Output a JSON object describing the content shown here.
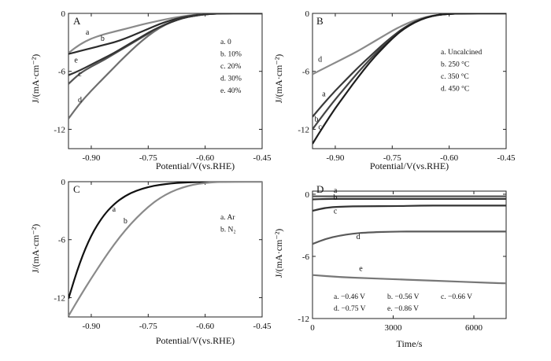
{
  "chart_data": [
    {
      "panel": "A",
      "type": "line",
      "xlabel": "Potential/V(vs.RHE)",
      "ylabel": "J/(mA·cm⁻²)",
      "xlim": [
        -0.96,
        -0.45
      ],
      "ylim": [
        -14,
        0
      ],
      "xticks": [
        -0.9,
        -0.75,
        -0.6,
        -0.45
      ],
      "xticklabels": [
        "-0.90",
        "-0.75",
        "-0.60",
        "-0.45"
      ],
      "yticks": [
        0,
        -6,
        -12
      ],
      "yticklabels": [
        "0",
        "-6",
        "-12"
      ],
      "legend": [
        "a. 0",
        "b. 10%",
        "c. 20%",
        "d. 30%",
        "e. 40%"
      ],
      "series": [
        {
          "label": "a",
          "color": "#8a8a8a",
          "x": [
            -0.96,
            -0.93,
            -0.9,
            -0.87,
            -0.84,
            -0.81,
            -0.78,
            -0.75,
            -0.72,
            -0.69,
            -0.66,
            -0.63,
            -0.6,
            -0.57,
            -0.54,
            -0.51,
            -0.48,
            -0.45
          ],
          "y": [
            -4.1,
            -3.2,
            -2.6,
            -2.2,
            -1.9,
            -1.6,
            -1.3,
            -1.0,
            -0.75,
            -0.5,
            -0.3,
            -0.15,
            -0.06,
            -0.02,
            0,
            0,
            0,
            0
          ]
        },
        {
          "label": "b",
          "color": "#2b2b2b",
          "x": [
            -0.96,
            -0.93,
            -0.9,
            -0.87,
            -0.84,
            -0.81,
            -0.78,
            -0.75,
            -0.72,
            -0.69,
            -0.66,
            -0.63,
            -0.6,
            -0.57,
            -0.54,
            -0.51,
            -0.48,
            -0.45
          ],
          "y": [
            -4.2,
            -3.9,
            -3.6,
            -3.3,
            -3.0,
            -2.6,
            -2.1,
            -1.6,
            -1.1,
            -0.7,
            -0.4,
            -0.2,
            -0.08,
            -0.02,
            0,
            0,
            0,
            0
          ]
        },
        {
          "label": "c",
          "color": "#555555",
          "x": [
            -0.96,
            -0.93,
            -0.9,
            -0.87,
            -0.84,
            -0.81,
            -0.78,
            -0.75,
            -0.72,
            -0.69,
            -0.66,
            -0.63,
            -0.6,
            -0.57,
            -0.54,
            -0.51,
            -0.48,
            -0.45
          ],
          "y": [
            -7.3,
            -6.2,
            -5.5,
            -4.9,
            -4.2,
            -3.5,
            -2.8,
            -2.1,
            -1.4,
            -0.9,
            -0.5,
            -0.25,
            -0.1,
            -0.03,
            0,
            0,
            0,
            0
          ]
        },
        {
          "label": "d",
          "color": "#6e6e6e",
          "x": [
            -0.96,
            -0.93,
            -0.9,
            -0.87,
            -0.84,
            -0.81,
            -0.78,
            -0.75,
            -0.72,
            -0.69,
            -0.66,
            -0.63,
            -0.6,
            -0.57,
            -0.54,
            -0.51,
            -0.48,
            -0.45
          ],
          "y": [
            -10.9,
            -9.3,
            -8.0,
            -6.8,
            -5.6,
            -4.4,
            -3.3,
            -2.3,
            -1.5,
            -0.9,
            -0.5,
            -0.25,
            -0.1,
            -0.03,
            0,
            0,
            0,
            0
          ]
        },
        {
          "label": "e",
          "color": "#333333",
          "x": [
            -0.96,
            -0.93,
            -0.9,
            -0.87,
            -0.84,
            -0.81,
            -0.78,
            -0.75,
            -0.72,
            -0.69,
            -0.66,
            -0.63,
            -0.6,
            -0.57,
            -0.54,
            -0.51,
            -0.48,
            -0.45
          ],
          "y": [
            -6.4,
            -5.9,
            -5.3,
            -4.7,
            -4.1,
            -3.4,
            -2.7,
            -2.0,
            -1.4,
            -0.9,
            -0.5,
            -0.25,
            -0.1,
            -0.03,
            0,
            0,
            0,
            0
          ]
        }
      ],
      "curve_labels": [
        {
          "text": "a",
          "x": -0.91,
          "y": -2.2
        },
        {
          "text": "b",
          "x": -0.87,
          "y": -2.85
        },
        {
          "text": "e",
          "x": -0.94,
          "y": -5.1
        },
        {
          "text": "c",
          "x": -0.93,
          "y": -6.5
        },
        {
          "text": "d",
          "x": -0.93,
          "y": -9.2
        }
      ]
    },
    {
      "panel": "B",
      "type": "line",
      "xlabel": "Potential/V(vs.RHE)",
      "ylabel": "J/(mA·cm⁻²)",
      "xlim": [
        -0.96,
        -0.45
      ],
      "ylim": [
        -14,
        0
      ],
      "xticks": [
        -0.9,
        -0.75,
        -0.6,
        -0.45
      ],
      "xticklabels": [
        "-0.90",
        "-0.75",
        "-0.60",
        "-0.45"
      ],
      "yticks": [
        0,
        -6,
        -12
      ],
      "yticklabels": [
        "0",
        "-6",
        "-12"
      ],
      "legend": [
        "a.  Uncalcined",
        "b.  250 °C",
        "c.  350 °C",
        "d.  450 °C"
      ],
      "series": [
        {
          "label": "d",
          "color": "#8a8a8a",
          "x": [
            -0.96,
            -0.93,
            -0.9,
            -0.87,
            -0.84,
            -0.81,
            -0.78,
            -0.75,
            -0.72,
            -0.69,
            -0.66,
            -0.63,
            -0.6,
            -0.57,
            -0.54,
            -0.51,
            -0.48,
            -0.45
          ],
          "y": [
            -6.3,
            -5.7,
            -5.1,
            -4.5,
            -3.9,
            -3.2,
            -2.5,
            -1.8,
            -1.2,
            -0.7,
            -0.35,
            -0.15,
            -0.05,
            -0.01,
            0,
            0,
            0,
            0
          ]
        },
        {
          "label": "a",
          "color": "#3a3a3a",
          "x": [
            -0.96,
            -0.93,
            -0.9,
            -0.87,
            -0.84,
            -0.81,
            -0.78,
            -0.75,
            -0.72,
            -0.69,
            -0.66,
            -0.63,
            -0.6,
            -0.57,
            -0.54,
            -0.51,
            -0.48,
            -0.45
          ],
          "y": [
            -10.7,
            -9.3,
            -8.0,
            -6.8,
            -5.6,
            -4.5,
            -3.4,
            -2.4,
            -1.5,
            -0.85,
            -0.4,
            -0.15,
            -0.05,
            -0.01,
            0,
            0,
            0,
            0
          ]
        },
        {
          "label": "b",
          "color": "#444444",
          "x": [
            -0.96,
            -0.93,
            -0.9,
            -0.87,
            -0.84,
            -0.81,
            -0.78,
            -0.75,
            -0.72,
            -0.69,
            -0.66,
            -0.63,
            -0.6,
            -0.57,
            -0.54,
            -0.51,
            -0.48,
            -0.45
          ],
          "y": [
            -12.0,
            -10.4,
            -8.9,
            -7.5,
            -6.1,
            -4.8,
            -3.6,
            -2.5,
            -1.6,
            -0.9,
            -0.42,
            -0.16,
            -0.05,
            -0.01,
            0,
            0,
            0,
            0
          ]
        },
        {
          "label": "c",
          "color": "#1e1e1e",
          "x": [
            -0.96,
            -0.93,
            -0.9,
            -0.87,
            -0.84,
            -0.81,
            -0.78,
            -0.75,
            -0.72,
            -0.69,
            -0.66,
            -0.63,
            -0.6,
            -0.57,
            -0.54,
            -0.51,
            -0.48,
            -0.45
          ],
          "y": [
            -13.5,
            -11.6,
            -9.8,
            -8.2,
            -6.6,
            -5.1,
            -3.8,
            -2.6,
            -1.6,
            -0.9,
            -0.42,
            -0.16,
            -0.05,
            -0.01,
            0,
            0,
            0,
            0
          ]
        }
      ],
      "curve_labels": [
        {
          "text": "d",
          "x": -0.94,
          "y": -5.0
        },
        {
          "text": "a",
          "x": -0.93,
          "y": -8.6
        },
        {
          "text": "b",
          "x": -0.95,
          "y": -11.2
        },
        {
          "text": "c",
          "x": -0.94,
          "y": -12.0
        }
      ]
    },
    {
      "panel": "C",
      "type": "line",
      "xlabel": "Potential/V(vs.RHE)",
      "ylabel": "J/(mA·cm⁻²)",
      "xlim": [
        -0.96,
        -0.45
      ],
      "ylim": [
        -14,
        0
      ],
      "xticks": [
        -0.9,
        -0.75,
        -0.6,
        -0.45
      ],
      "xticklabels": [
        "-0.90",
        "-0.75",
        "-0.60",
        "-0.45"
      ],
      "yticks": [
        0,
        -6,
        -12
      ],
      "yticklabels": [
        "0",
        "-6",
        "-12"
      ],
      "legend": [
        "a.  Ar",
        "b.  N₂"
      ],
      "series": [
        {
          "label": "a",
          "color": "#111111",
          "x": [
            -0.96,
            -0.93,
            -0.9,
            -0.87,
            -0.84,
            -0.81,
            -0.78,
            -0.75,
            -0.72,
            -0.69,
            -0.66,
            -0.63,
            -0.6,
            -0.57,
            -0.54,
            -0.51,
            -0.48,
            -0.45
          ],
          "y": [
            -12.1,
            -8.3,
            -5.5,
            -3.6,
            -2.3,
            -1.45,
            -0.9,
            -0.55,
            -0.32,
            -0.18,
            -0.1,
            -0.05,
            -0.02,
            -0.01,
            0,
            0,
            0,
            0
          ]
        },
        {
          "label": "b",
          "color": "#8a8a8a",
          "x": [
            -0.96,
            -0.93,
            -0.9,
            -0.87,
            -0.84,
            -0.81,
            -0.78,
            -0.75,
            -0.72,
            -0.69,
            -0.66,
            -0.63,
            -0.6,
            -0.57,
            -0.54,
            -0.51,
            -0.48,
            -0.45
          ],
          "y": [
            -13.9,
            -11.9,
            -10.0,
            -8.2,
            -6.5,
            -5.0,
            -3.7,
            -2.6,
            -1.7,
            -1.05,
            -0.6,
            -0.3,
            -0.12,
            -0.04,
            -0.01,
            0,
            0,
            0
          ]
        }
      ],
      "curve_labels": [
        {
          "text": "a",
          "x": -0.84,
          "y": -3.1
        },
        {
          "text": "b",
          "x": -0.81,
          "y": -4.3
        }
      ]
    },
    {
      "panel": "D",
      "type": "line",
      "xlabel": "Time/s",
      "ylabel": "J/(mA·cm⁻²)",
      "xlim": [
        0,
        7200
      ],
      "ylim": [
        -12,
        0.3
      ],
      "xticks": [
        0,
        3000,
        6000
      ],
      "xticklabels": [
        "0",
        "3000",
        "6000"
      ],
      "yticks": [
        0,
        -6,
        -12
      ],
      "yticklabels": [
        "0",
        "-6",
        "-12"
      ],
      "legend": [
        "a. −0.46 V",
        "b. −0.56 V",
        "c. −0.66 V",
        "d. −0.75 V",
        "e. −0.86 V"
      ],
      "series": [
        {
          "label": "a",
          "color": "#555555",
          "x": [
            0,
            500,
            1000,
            2000,
            3000,
            4000,
            5000,
            6000,
            7200
          ],
          "y": [
            -0.2,
            -0.2,
            -0.2,
            -0.2,
            -0.2,
            -0.2,
            -0.2,
            -0.2,
            -0.2
          ]
        },
        {
          "label": "b",
          "color": "#333333",
          "x": [
            0,
            500,
            1000,
            2000,
            3000,
            4000,
            5000,
            6000,
            7200
          ],
          "y": [
            -0.5,
            -0.45,
            -0.45,
            -0.45,
            -0.45,
            -0.45,
            -0.45,
            -0.45,
            -0.45
          ]
        },
        {
          "label": "c",
          "color": "#333333",
          "x": [
            0,
            500,
            1000,
            2000,
            3000,
            4000,
            5000,
            6000,
            7200
          ],
          "y": [
            -1.6,
            -1.3,
            -1.2,
            -1.15,
            -1.15,
            -1.1,
            -1.1,
            -1.1,
            -1.1
          ]
        },
        {
          "label": "d",
          "color": "#5a5a5a",
          "x": [
            0,
            500,
            1000,
            1500,
            2000,
            3000,
            4000,
            5000,
            6000,
            7200
          ],
          "y": [
            -4.8,
            -4.3,
            -4.0,
            -3.8,
            -3.7,
            -3.6,
            -3.6,
            -3.6,
            -3.6,
            -3.6
          ]
        },
        {
          "label": "e",
          "color": "#777777",
          "x": [
            0,
            1000,
            2000,
            3000,
            4000,
            5000,
            6000,
            7200
          ],
          "y": [
            -7.8,
            -8.0,
            -8.1,
            -8.2,
            -8.3,
            -8.4,
            -8.5,
            -8.6
          ]
        }
      ],
      "curve_labels": [
        {
          "text": "a",
          "x": 850,
          "y": 0.15
        },
        {
          "text": "b",
          "x": 850,
          "y": -0.55
        },
        {
          "text": "c",
          "x": 850,
          "y": -1.85
        },
        {
          "text": "d",
          "x": 1700,
          "y": -4.35
        },
        {
          "text": "e",
          "x": 1800,
          "y": -7.4
        }
      ]
    }
  ],
  "panel_letters": [
    "A",
    "B",
    "C",
    "D"
  ]
}
